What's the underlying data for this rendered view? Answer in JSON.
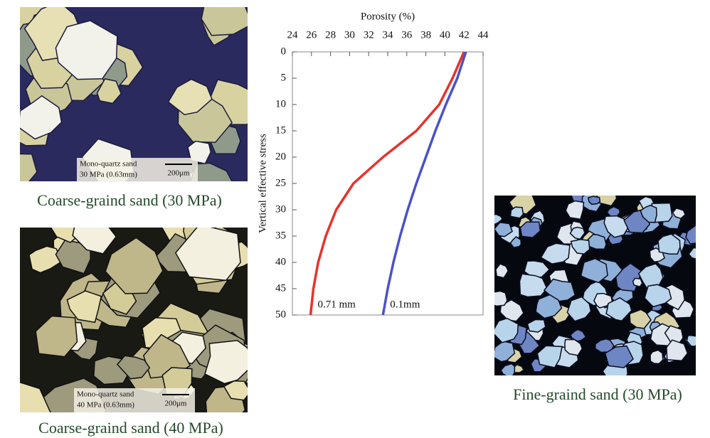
{
  "panels": [
    {
      "caption": "Coarse-graind sand (30 MPa)",
      "scale_line1": "Mono-quartz sand",
      "scale_line2": "30 MPa (0.63mm)",
      "scale_bar": "200μm"
    },
    {
      "caption": "Coarse-graind sand (40 MPa)",
      "scale_line1": "Mono-quartz sand",
      "scale_line2": "40 MPa (0.63mm)",
      "scale_bar": "200μm"
    },
    {
      "caption": "Fine-graind sand (30 MPa)"
    }
  ],
  "chart_data": {
    "type": "line",
    "x_label": "Porosity (%)",
    "y_label": "Vertical effective stress",
    "xlim": [
      24,
      44
    ],
    "xticks": [
      24,
      26,
      28,
      30,
      32,
      34,
      36,
      38,
      40,
      42,
      44
    ],
    "ylim": [
      0,
      50
    ],
    "yticks": [
      0,
      5,
      10,
      15,
      20,
      25,
      30,
      35,
      40,
      45,
      50
    ],
    "y_inverted": true,
    "y": [
      0,
      5,
      10,
      15,
      20,
      25,
      30,
      35,
      40,
      45,
      50
    ],
    "series": [
      {
        "name": "0.71 mm",
        "color": "#e8322a",
        "values": [
          42,
          40.8,
          39.4,
          37,
          33.5,
          30.4,
          28.6,
          27.5,
          26.7,
          26.2,
          25.9
        ]
      },
      {
        "name": "0.1mm",
        "color": "#4a52c8",
        "values": [
          42.2,
          41.3,
          40.1,
          39.0,
          38.0,
          37.0,
          36.1,
          35.3,
          34.6,
          34.0,
          33.5
        ]
      }
    ]
  }
}
